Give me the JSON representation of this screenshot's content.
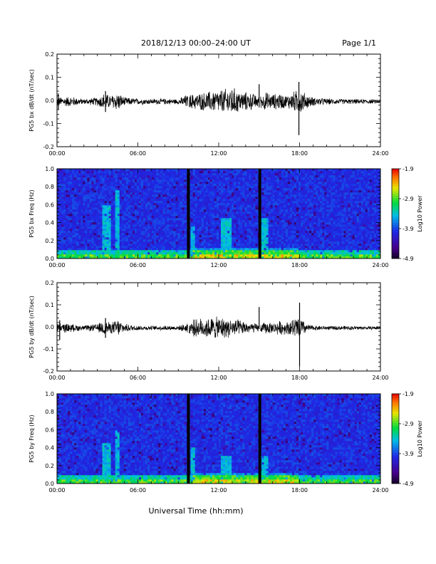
{
  "header": {
    "title": "2018/12/13  00:00–24:00 UT",
    "page": "Page 1/1"
  },
  "x_axis_title": "Universal Time (hh:mm)",
  "chart_data": [
    {
      "type": "line",
      "panel_id": "bx-dbdt",
      "ylabel": "PG5 bx dB/dt (nT/sec)",
      "xlim": [
        "00:00",
        "24:00"
      ],
      "ylim": [
        -0.2,
        0.2
      ],
      "x_ticks": [
        "00:00",
        "06:00",
        "12:00",
        "18:00",
        "24:00"
      ],
      "y_ticks": [
        "-0.2",
        "-0.1",
        "0.0",
        "0.1",
        "0.2"
      ],
      "data_gaps_hours": [
        9.75,
        15.05
      ],
      "envelope": {
        "x_hours": [
          0,
          1,
          2,
          3,
          3.5,
          4,
          4.5,
          5,
          6,
          7,
          8,
          9,
          9.5,
          10,
          11,
          12,
          12.5,
          13,
          13.5,
          14,
          14.5,
          15,
          15.5,
          16,
          16.5,
          17,
          17.5,
          18,
          18.5,
          19,
          20,
          21,
          22,
          23,
          24
        ],
        "amplitude": [
          0.02,
          0.025,
          0.012,
          0.02,
          0.04,
          0.03,
          0.045,
          0.02,
          0.014,
          0.012,
          0.014,
          0.012,
          0.03,
          0.035,
          0.045,
          0.055,
          0.06,
          0.07,
          0.05,
          0.045,
          0.04,
          0.025,
          0.045,
          0.035,
          0.04,
          0.03,
          0.045,
          0.06,
          0.035,
          0.02,
          0.015,
          0.012,
          0.012,
          0.01,
          0.01
        ]
      },
      "spikes": [
        {
          "x_hours": 0.1,
          "min": -0.04,
          "max": 0.03
        },
        {
          "x_hours": 3.6,
          "min": -0.05,
          "max": 0.04
        },
        {
          "x_hours": 15.0,
          "min": -0.03,
          "max": 0.07
        },
        {
          "x_hours": 17.95,
          "min": -0.15,
          "max": 0.08
        }
      ]
    },
    {
      "type": "heatmap",
      "panel_id": "bx-spectrogram",
      "ylabel": "PG5 bx Freq (Hz)",
      "xlim": [
        "00:00",
        "24:00"
      ],
      "ylim": [
        0.0,
        1.0
      ],
      "x_ticks": [
        "00:00",
        "06:00",
        "12:00",
        "18:00",
        "24:00"
      ],
      "y_ticks": [
        "0.0",
        "0.2",
        "0.4",
        "0.6",
        "0.8",
        "1.0"
      ],
      "colorbar": {
        "label": "Log10 Power",
        "range": [
          -4.9,
          -1.9
        ],
        "ticks": [
          "-1.9",
          "-2.9",
          "-3.9",
          "-4.9"
        ]
      },
      "data_gaps_hours": [
        9.75,
        15.05
      ],
      "features": [
        {
          "x_hours": [
            3.3,
            4.0
          ],
          "f_max": 0.6
        },
        {
          "x_hours": [
            4.3,
            4.7
          ],
          "f_max": 0.75
        },
        {
          "x_hours": [
            12.2,
            13.0
          ],
          "f_max": 0.45
        },
        {
          "x_hours": [
            15.0,
            15.6
          ],
          "f_max": 0.45
        },
        {
          "x_hours": [
            10.0,
            10.3
          ],
          "f_max": 0.35
        }
      ]
    },
    {
      "type": "line",
      "panel_id": "by-dbdt",
      "ylabel": "PG5 by dB/dt (nT/sec)",
      "xlim": [
        "00:00",
        "24:00"
      ],
      "ylim": [
        -0.2,
        0.2
      ],
      "x_ticks": [
        "00:00",
        "06:00",
        "12:00",
        "18:00",
        "24:00"
      ],
      "y_ticks": [
        "-0.2",
        "-0.1",
        "0.0",
        "0.1",
        "0.2"
      ],
      "data_gaps_hours": [
        9.75,
        15.05
      ],
      "envelope": {
        "x_hours": [
          0,
          1,
          2,
          3,
          3.5,
          4,
          4.5,
          5,
          6,
          7,
          8,
          9,
          9.5,
          10,
          11,
          12,
          12.5,
          13,
          13.5,
          14,
          14.5,
          15,
          15.5,
          16,
          16.5,
          17,
          17.5,
          18,
          18.5,
          19,
          20,
          21,
          22,
          23,
          24
        ],
        "amplitude": [
          0.025,
          0.02,
          0.012,
          0.02,
          0.04,
          0.025,
          0.045,
          0.02,
          0.012,
          0.01,
          0.012,
          0.01,
          0.02,
          0.04,
          0.05,
          0.055,
          0.05,
          0.045,
          0.04,
          0.03,
          0.025,
          0.02,
          0.03,
          0.025,
          0.035,
          0.03,
          0.045,
          0.06,
          0.02,
          0.012,
          0.01,
          0.01,
          0.01,
          0.008,
          0.008
        ]
      },
      "spikes": [
        {
          "x_hours": 0.2,
          "min": -0.06,
          "max": 0.03
        },
        {
          "x_hours": 3.6,
          "min": -0.05,
          "max": 0.04
        },
        {
          "x_hours": 15.0,
          "min": -0.01,
          "max": 0.09
        },
        {
          "x_hours": 18.0,
          "min": -0.18,
          "max": 0.11
        }
      ]
    },
    {
      "type": "heatmap",
      "panel_id": "by-spectrogram",
      "ylabel": "PG5 by Freq (Hz)",
      "xlim": [
        "00:00",
        "24:00"
      ],
      "ylim": [
        0.0,
        1.0
      ],
      "x_ticks": [
        "00:00",
        "06:00",
        "12:00",
        "18:00",
        "24:00"
      ],
      "y_ticks": [
        "0.0",
        "0.2",
        "0.4",
        "0.6",
        "0.8",
        "1.0"
      ],
      "colorbar": {
        "label": "Log10 Power",
        "range": [
          -4.9,
          -1.9
        ],
        "ticks": [
          "-1.9",
          "-2.9",
          "-3.9",
          "-4.9"
        ]
      },
      "data_gaps_hours": [
        9.75,
        15.05
      ],
      "features": [
        {
          "x_hours": [
            3.3,
            4.0
          ],
          "f_max": 0.45
        },
        {
          "x_hours": [
            4.3,
            4.7
          ],
          "f_max": 0.6
        },
        {
          "x_hours": [
            12.2,
            13.0
          ],
          "f_max": 0.3
        },
        {
          "x_hours": [
            15.0,
            15.6
          ],
          "f_max": 0.3
        },
        {
          "x_hours": [
            9.9,
            10.2
          ],
          "f_max": 0.4
        }
      ]
    }
  ]
}
